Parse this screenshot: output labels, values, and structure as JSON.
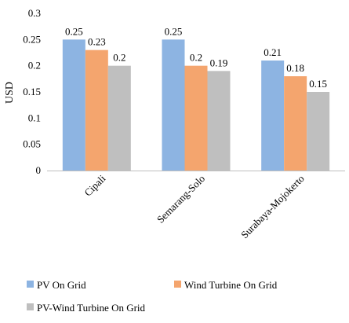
{
  "chart_data": {
    "type": "bar",
    "categories": [
      "Cipali",
      "Semarang-Solo",
      "Surabaya-Mojokerto"
    ],
    "series": [
      {
        "name": "PV On Grid",
        "values": [
          0.25,
          0.25,
          0.21
        ],
        "labels": [
          "0.25",
          "0.25",
          "0.21"
        ]
      },
      {
        "name": "Wind Turbine On Grid",
        "values": [
          0.23,
          0.2,
          0.18
        ],
        "labels": [
          "0.23",
          "0.2",
          "0.18"
        ]
      },
      {
        "name": "PV-Wind Turbine On Grid",
        "values": [
          0.2,
          0.19,
          0.15
        ],
        "labels": [
          "0.2",
          "0.19",
          "0.15"
        ]
      }
    ],
    "ylabel": "USD",
    "xlabel": "",
    "ylim": [
      0,
      0.3
    ],
    "yticks": [
      "0",
      "0.05",
      "0.1",
      "0.15",
      "0.2",
      "0.25",
      "0.3"
    ],
    "grid": false,
    "legend_position": "bottom",
    "colors": {
      "PV On Grid": "#8db4e2",
      "Wind Turbine On Grid": "#f4a56e",
      "PV-Wind Turbine On Grid": "#bfbfbf"
    }
  }
}
